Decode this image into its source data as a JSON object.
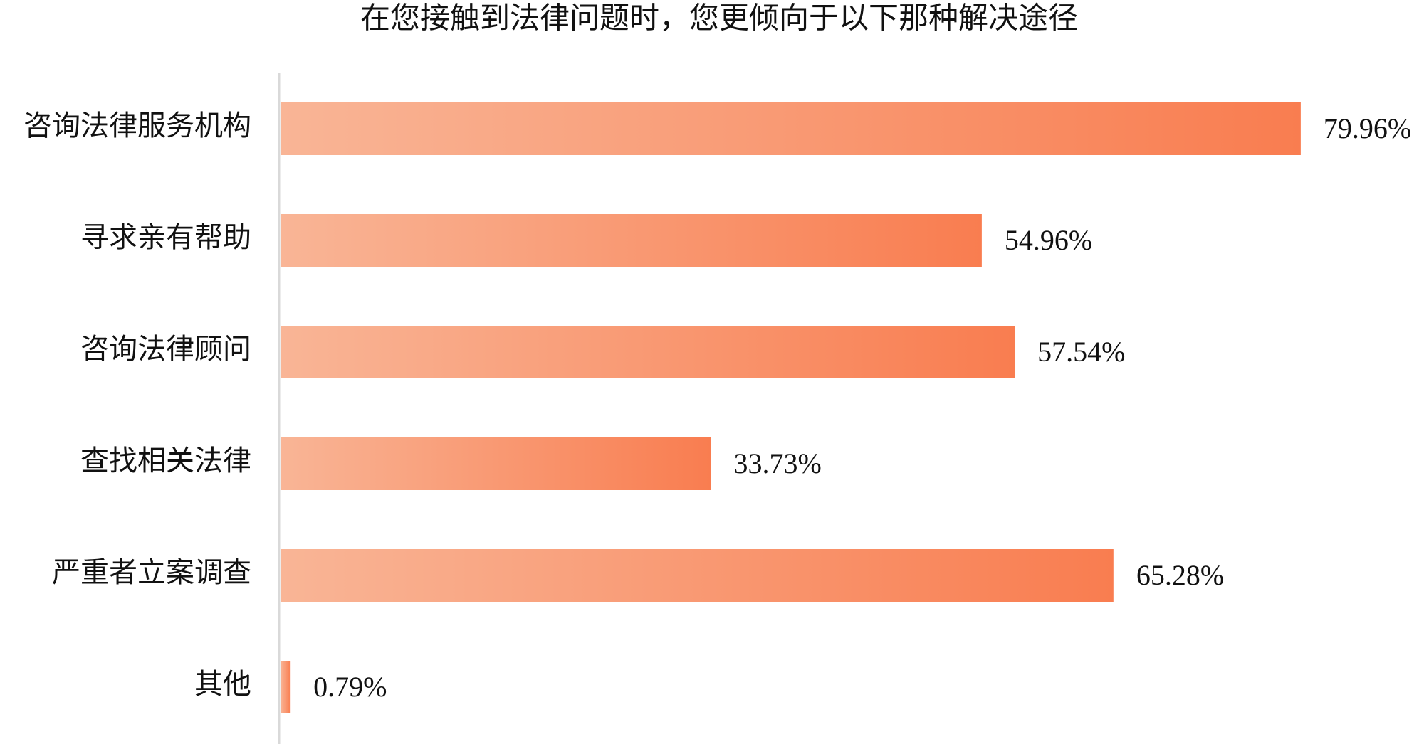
{
  "chart_data": {
    "type": "bar",
    "orientation": "horizontal",
    "title": "在您接触到法律问题时，您更倾向于以下那种解决途径",
    "categories": [
      "咨询法律服务机构",
      "寻求亲有帮助",
      "咨询法律顾问",
      "查找相关法律",
      "严重者立案调查",
      "其他"
    ],
    "values": [
      79.96,
      54.96,
      57.54,
      33.73,
      65.28,
      0.79
    ],
    "value_labels": [
      "79.96%",
      "54.96%",
      "57.54%",
      "33.73%",
      "65.28%",
      "0.79%"
    ],
    "color": [
      "#f9b596",
      "#f97d50"
    ]
  }
}
